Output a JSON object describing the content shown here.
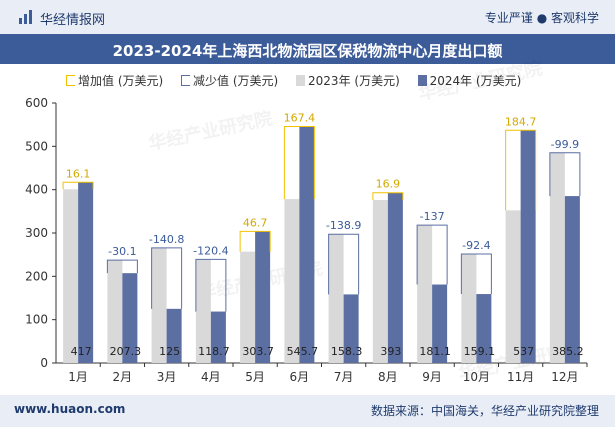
{
  "header": {
    "brand": "华经情报网",
    "tags": "专业严谨 ● 客观科学"
  },
  "title": "2023-2024年上海西北物流园区保税物流中心月度出口额",
  "legend": {
    "increase": "增加值 (万美元)",
    "decrease": "减少值 (万美元)",
    "y2023": "2023年 (万美元)",
    "y2024": "2024年 (万美元)"
  },
  "footer": {
    "site": "www.huaon.com",
    "source": "数据来源：中国海关，华经产业研究院整理"
  },
  "watermark": "华经产业研究院",
  "colors": {
    "increase": "#f2c200",
    "decrease": "#5b6fa3",
    "y2023": "#d9d9d9",
    "y2024": "#5b6fa3",
    "banner": "#3b5b99"
  },
  "chart_data": {
    "type": "bar",
    "categories": [
      "1月",
      "2月",
      "3月",
      "4月",
      "5月",
      "6月",
      "7月",
      "8月",
      "9月",
      "10月",
      "11月",
      "12月"
    ],
    "series": [
      {
        "name": "2023年 (万美元)",
        "values": [
          400.9,
          237.4,
          265.8,
          239.1,
          257,
          378.3,
          297.2,
          376.1,
          318.1,
          251.5,
          352.3,
          485.1
        ]
      },
      {
        "name": "2024年 (万美元)",
        "values": [
          417,
          207.3,
          125,
          118.7,
          303.7,
          545.7,
          158.3,
          393,
          181.1,
          159.1,
          537,
          385.2
        ]
      }
    ],
    "change": [
      16.1,
      -30.1,
      -140.8,
      -120.4,
      46.7,
      167.4,
      -138.9,
      16.9,
      -137,
      -92.4,
      184.7,
      -99.9
    ],
    "change_labels": [
      "16.1",
      "-30.1",
      "-140.8",
      "-120.4",
      "46.7",
      "167.4",
      "-138.9",
      "16.9",
      "-137",
      "-92.4",
      "184.7",
      "-99.9"
    ],
    "value_labels": [
      "417",
      "207.3",
      "125",
      "118.7",
      "303.7",
      "545.7",
      "158.3",
      "393",
      "181.1",
      "159.1",
      "537",
      "385.2"
    ],
    "yticks": [
      0,
      100,
      200,
      300,
      400,
      500,
      600
    ],
    "ylim": [
      0,
      600
    ],
    "grid": false,
    "legend_position": "top"
  }
}
